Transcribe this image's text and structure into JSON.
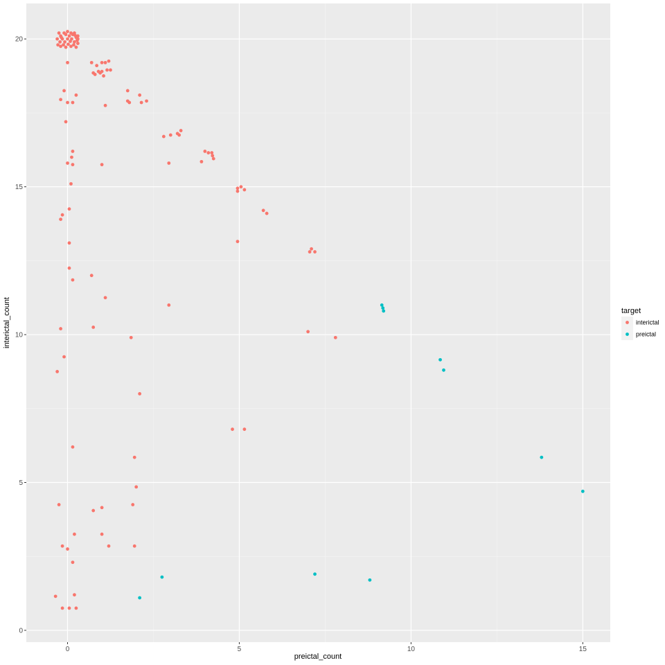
{
  "chart_data": {
    "type": "scatter",
    "title": "",
    "xlabel": "preictal_count",
    "ylabel": "interictal_count",
    "xlim": [
      -1.2,
      15.8
    ],
    "ylim": [
      -0.4,
      21.2
    ],
    "xticks": [
      0,
      5,
      10,
      15
    ],
    "yticks": [
      0,
      5,
      10,
      15,
      20
    ],
    "x_minor": [
      -2.5,
      2.5,
      7.5,
      12.5
    ],
    "y_minor": [
      2.5,
      7.5,
      12.5,
      17.5
    ],
    "grid": true,
    "legend_position": "right",
    "legend_title": "target",
    "series": [
      {
        "name": "interictal",
        "color": "#F8766D",
        "points": [
          [
            -0.25,
            20.2
          ],
          [
            -0.1,
            20.2
          ],
          [
            0.0,
            20.25
          ],
          [
            0.1,
            20.2
          ],
          [
            0.2,
            20.2
          ],
          [
            0.3,
            20.1
          ],
          [
            -0.2,
            20.1
          ],
          [
            -0.05,
            20.15
          ],
          [
            0.05,
            20.1
          ],
          [
            0.15,
            20.15
          ],
          [
            0.25,
            20.05
          ],
          [
            -0.3,
            20.0
          ],
          [
            -0.15,
            20.0
          ],
          [
            0.0,
            20.0
          ],
          [
            0.12,
            20.0
          ],
          [
            0.28,
            19.95
          ],
          [
            -0.22,
            19.9
          ],
          [
            -0.08,
            19.9
          ],
          [
            0.08,
            19.92
          ],
          [
            0.2,
            19.9
          ],
          [
            0.3,
            19.85
          ],
          [
            -0.28,
            19.8
          ],
          [
            -0.12,
            19.8
          ],
          [
            0.02,
            19.82
          ],
          [
            0.18,
            19.8
          ],
          [
            -0.2,
            19.75
          ],
          [
            -0.05,
            19.72
          ],
          [
            0.1,
            19.75
          ],
          [
            0.25,
            19.72
          ],
          [
            0.3,
            20.0
          ],
          [
            0.22,
            20.12
          ],
          [
            -0.18,
            20.05
          ],
          [
            0.0,
            19.2
          ],
          [
            0.7,
            19.2
          ],
          [
            0.85,
            19.1
          ],
          [
            1.0,
            19.2
          ],
          [
            1.1,
            19.2
          ],
          [
            1.2,
            19.25
          ],
          [
            1.15,
            18.95
          ],
          [
            1.25,
            18.95
          ],
          [
            0.8,
            18.8
          ],
          [
            0.9,
            18.9
          ],
          [
            1.0,
            18.9
          ],
          [
            0.95,
            18.85
          ],
          [
            1.05,
            18.75
          ],
          [
            0.75,
            18.85
          ],
          [
            -0.1,
            18.25
          ],
          [
            0.25,
            18.1
          ],
          [
            -0.2,
            17.95
          ],
          [
            0.0,
            17.85
          ],
          [
            0.15,
            17.85
          ],
          [
            1.75,
            18.25
          ],
          [
            2.1,
            18.1
          ],
          [
            1.75,
            17.9
          ],
          [
            1.8,
            17.85
          ],
          [
            2.3,
            17.9
          ],
          [
            2.15,
            17.85
          ],
          [
            1.1,
            17.75
          ],
          [
            -0.05,
            17.2
          ],
          [
            2.8,
            16.7
          ],
          [
            3.0,
            16.75
          ],
          [
            3.2,
            16.8
          ],
          [
            3.3,
            16.9
          ],
          [
            3.25,
            16.75
          ],
          [
            4.0,
            16.2
          ],
          [
            4.1,
            16.15
          ],
          [
            4.2,
            16.15
          ],
          [
            3.9,
            15.85
          ],
          [
            4.25,
            15.95
          ],
          [
            4.22,
            16.05
          ],
          [
            0.15,
            16.2
          ],
          [
            0.12,
            16.0
          ],
          [
            0.0,
            15.8
          ],
          [
            0.15,
            15.75
          ],
          [
            1.0,
            15.75
          ],
          [
            2.95,
            15.8
          ],
          [
            0.1,
            15.1
          ],
          [
            4.95,
            14.95
          ],
          [
            5.05,
            15.0
          ],
          [
            5.15,
            14.9
          ],
          [
            4.95,
            14.85
          ],
          [
            5.7,
            14.2
          ],
          [
            5.8,
            14.1
          ],
          [
            0.05,
            14.25
          ],
          [
            -0.15,
            14.05
          ],
          [
            -0.2,
            13.9
          ],
          [
            0.05,
            13.1
          ],
          [
            4.95,
            13.15
          ],
          [
            7.1,
            12.9
          ],
          [
            7.05,
            12.8
          ],
          [
            7.2,
            12.8
          ],
          [
            0.05,
            12.25
          ],
          [
            0.7,
            12.0
          ],
          [
            0.15,
            11.85
          ],
          [
            1.1,
            11.25
          ],
          [
            2.95,
            11.0
          ],
          [
            -0.2,
            10.2
          ],
          [
            0.75,
            10.25
          ],
          [
            7.0,
            10.1
          ],
          [
            1.85,
            9.9
          ],
          [
            7.8,
            9.9
          ],
          [
            -0.1,
            9.25
          ],
          [
            -0.3,
            8.75
          ],
          [
            2.1,
            8.0
          ],
          [
            4.8,
            6.8
          ],
          [
            5.15,
            6.8
          ],
          [
            0.15,
            6.2
          ],
          [
            1.95,
            5.85
          ],
          [
            2.0,
            4.85
          ],
          [
            -0.25,
            4.25
          ],
          [
            1.0,
            4.15
          ],
          [
            0.75,
            4.05
          ],
          [
            1.9,
            4.25
          ],
          [
            1.0,
            3.25
          ],
          [
            0.2,
            3.25
          ],
          [
            -0.15,
            2.85
          ],
          [
            0.0,
            2.75
          ],
          [
            1.2,
            2.85
          ],
          [
            1.95,
            2.85
          ],
          [
            0.15,
            2.3
          ],
          [
            -0.35,
            1.15
          ],
          [
            0.2,
            1.2
          ],
          [
            -0.15,
            0.75
          ],
          [
            0.05,
            0.75
          ],
          [
            0.25,
            0.75
          ]
        ]
      },
      {
        "name": "preictal",
        "color": "#00BFC4",
        "points": [
          [
            9.15,
            11.0
          ],
          [
            9.18,
            10.9
          ],
          [
            9.2,
            10.8
          ],
          [
            10.85,
            9.15
          ],
          [
            10.95,
            8.8
          ],
          [
            13.8,
            5.85
          ],
          [
            15.0,
            4.7
          ],
          [
            2.75,
            1.8
          ],
          [
            2.1,
            1.1
          ],
          [
            7.2,
            1.9
          ],
          [
            8.8,
            1.7
          ]
        ]
      }
    ]
  }
}
